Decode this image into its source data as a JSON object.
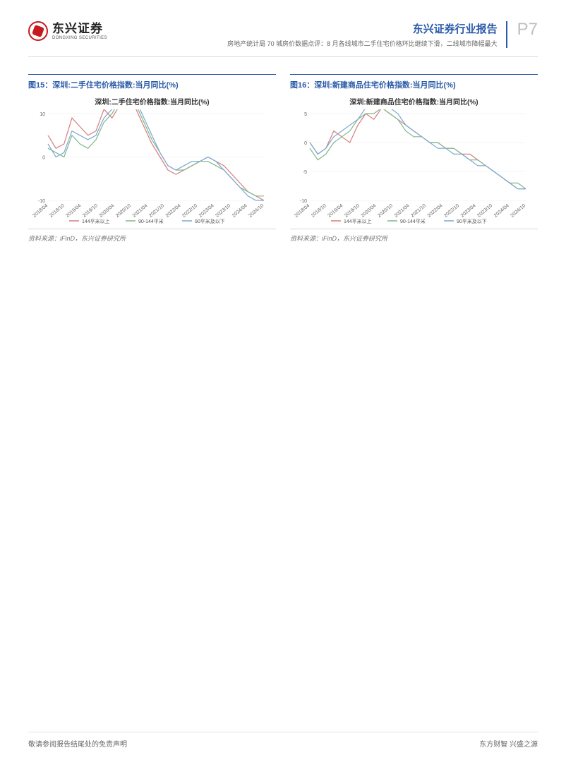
{
  "header": {
    "logo_cn": "东兴证券",
    "logo_en": "DONGXING SECURITIES",
    "report_title": "东兴证券行业报告",
    "report_subtitle": "房地产统计局 70 城房价数据点评：8 月各线城市二手住宅价格环比继续下滑，二线城市降幅最大",
    "page_number": "P7"
  },
  "charts": {
    "left": {
      "heading": "图15：深圳:二手住宅价格指数:当月同比(%)",
      "title": "深圳:二手住宅价格指数:当月同比(%)",
      "source": "资料来源：iFinD，东兴证券研究所",
      "type": "line",
      "ylim": [
        -10,
        10
      ],
      "yticks": [
        -10,
        0,
        10
      ],
      "x_labels": [
        "2018/04",
        "2018/10",
        "2019/04",
        "2019/10",
        "2020/04",
        "2020/10",
        "2021/04",
        "2021/10",
        "2022/04",
        "2022/10",
        "2023/04",
        "2023/10",
        "2024/04",
        "2024/10"
      ],
      "grid_color": "#e9e9e9",
      "background_color": "#ffffff",
      "axis_color": "#bcbcbc",
      "label_fontsize": 7,
      "series": [
        {
          "name": "144平米以上",
          "color": "#d97b7b",
          "values": [
            5,
            2,
            3,
            9,
            7,
            5,
            6,
            11,
            9,
            12,
            13,
            11,
            7,
            3,
            0,
            -3,
            -4,
            -3,
            -2,
            -1,
            0,
            -1,
            -2,
            -4,
            -6,
            -8,
            -9,
            -10
          ]
        },
        {
          "name": "90-144平米",
          "color": "#7db88a",
          "values": [
            2,
            1,
            0,
            5,
            3,
            2,
            4,
            8,
            10,
            13,
            15,
            12,
            8,
            4,
            1,
            -2,
            -3,
            -3,
            -2,
            -1,
            -1,
            -2,
            -3,
            -5,
            -7,
            -8,
            -9,
            -9
          ]
        },
        {
          "name": "90平米及以下",
          "color": "#7aa8d4",
          "values": [
            3,
            0,
            1,
            6,
            5,
            4,
            5,
            9,
            11,
            14,
            16,
            13,
            9,
            5,
            1,
            -2,
            -3,
            -2,
            -1,
            -1,
            0,
            -1,
            -3,
            -5,
            -7,
            -9,
            -10,
            -10
          ]
        }
      ]
    },
    "right": {
      "heading": "图16：深圳:新建商品住宅价格指数:当月同比(%)",
      "title": "深圳:新建商品住宅价格指数:当月同比(%)",
      "source": "资料来源：iFinD，东兴证券研究所",
      "type": "line",
      "ylim": [
        -10,
        5
      ],
      "yticks": [
        -10,
        -5,
        0,
        5
      ],
      "x_labels": [
        "2018/04",
        "2018/10",
        "2019/04",
        "2019/10",
        "2020/04",
        "2020/10",
        "2021/04",
        "2021/10",
        "2022/04",
        "2022/10",
        "2023/04",
        "2023/10",
        "2024/04",
        "2024/10"
      ],
      "grid_color": "#e9e9e9",
      "background_color": "#ffffff",
      "axis_color": "#bcbcbc",
      "label_fontsize": 7,
      "series": [
        {
          "name": "144平米以上",
          "color": "#d97b7b",
          "values": [
            0,
            -2,
            -1,
            2,
            1,
            0,
            3,
            5,
            4,
            6,
            5,
            4,
            3,
            2,
            1,
            0,
            0,
            -1,
            -1,
            -2,
            -2,
            -3,
            -4,
            -5,
            -6,
            -7,
            -8,
            -8
          ]
        },
        {
          "name": "90-144平米",
          "color": "#7db88a",
          "values": [
            -1,
            -3,
            -2,
            0,
            1,
            2,
            4,
            5,
            5,
            6,
            5,
            4,
            2,
            1,
            1,
            0,
            0,
            -1,
            -1,
            -2,
            -3,
            -3,
            -4,
            -5,
            -6,
            -7,
            -7,
            -8
          ]
        },
        {
          "name": "90平米及以下",
          "color": "#7aa8d4",
          "values": [
            0,
            -2,
            -1,
            1,
            2,
            3,
            4,
            6,
            6,
            7,
            6,
            5,
            3,
            2,
            1,
            0,
            -1,
            -1,
            -2,
            -2,
            -3,
            -4,
            -4,
            -5,
            -6,
            -7,
            -8,
            -8
          ]
        }
      ]
    }
  },
  "legend_labels": [
    "144平米以上",
    "90-144平米",
    "90平米及以下"
  ],
  "legend_colors": [
    "#d97b7b",
    "#7db88a",
    "#7aa8d4"
  ],
  "footer": {
    "left": "敬请参阅报告结尾处的免责声明",
    "right": "东方财智 兴盛之源"
  }
}
